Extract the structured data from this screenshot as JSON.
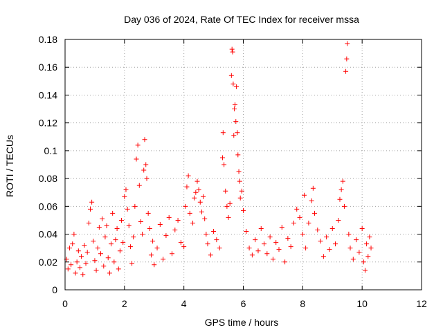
{
  "chart_data": {
    "type": "scatter",
    "title": "Day 036 of 2024, Rate Of TEC Index for receiver mssa",
    "xlabel": "GPS time / hours",
    "ylabel": "ROTI / TECUs",
    "xlim": [
      0,
      12
    ],
    "ylim": [
      0,
      0.18
    ],
    "xticks": [
      0,
      2,
      4,
      6,
      8,
      10,
      12
    ],
    "yticks": [
      0,
      0.02,
      0.04,
      0.06,
      0.08,
      0.1,
      0.12,
      0.14,
      0.16,
      0.18
    ],
    "xtick_labels": [
      "0",
      "2",
      "4",
      "6",
      "8",
      "10",
      "12"
    ],
    "ytick_labels": [
      "0",
      "0.02",
      "0.04",
      "0.06",
      "0.08",
      "0.1",
      "0.12",
      "0.14",
      "0.16",
      "0.18"
    ],
    "grid": true,
    "marker": "+",
    "marker_color": "#ff0000",
    "series": [
      {
        "name": "ROTI",
        "points": [
          [
            0.05,
            0.022
          ],
          [
            0.1,
            0.015
          ],
          [
            0.15,
            0.03
          ],
          [
            0.2,
            0.018
          ],
          [
            0.25,
            0.033
          ],
          [
            0.3,
            0.04
          ],
          [
            0.35,
            0.012
          ],
          [
            0.4,
            0.02
          ],
          [
            0.45,
            0.028
          ],
          [
            0.5,
            0.016
          ],
          [
            0.55,
            0.024
          ],
          [
            0.6,
            0.011
          ],
          [
            0.65,
            0.032
          ],
          [
            0.7,
            0.019
          ],
          [
            0.75,
            0.027
          ],
          [
            0.8,
            0.048
          ],
          [
            0.85,
            0.058
          ],
          [
            0.9,
            0.063
          ],
          [
            0.95,
            0.035
          ],
          [
            1.0,
            0.021
          ],
          [
            1.05,
            0.014
          ],
          [
            1.1,
            0.03
          ],
          [
            1.15,
            0.045
          ],
          [
            1.2,
            0.026
          ],
          [
            1.25,
            0.051
          ],
          [
            1.3,
            0.017
          ],
          [
            1.35,
            0.038
          ],
          [
            1.4,
            0.046
          ],
          [
            1.45,
            0.023
          ],
          [
            1.5,
            0.012
          ],
          [
            1.55,
            0.033
          ],
          [
            1.6,
            0.055
          ],
          [
            1.65,
            0.02
          ],
          [
            1.7,
            0.036
          ],
          [
            1.75,
            0.044
          ],
          [
            1.8,
            0.015
          ],
          [
            1.85,
            0.028
          ],
          [
            1.9,
            0.05
          ],
          [
            1.95,
            0.034
          ],
          [
            2.0,
            0.067
          ],
          [
            2.05,
            0.072
          ],
          [
            2.1,
            0.058
          ],
          [
            2.15,
            0.046
          ],
          [
            2.2,
            0.031
          ],
          [
            2.25,
            0.019
          ],
          [
            2.3,
            0.038
          ],
          [
            2.35,
            0.06
          ],
          [
            2.4,
            0.094
          ],
          [
            2.45,
            0.104
          ],
          [
            2.5,
            0.075
          ],
          [
            2.55,
            0.049
          ],
          [
            2.6,
            0.04
          ],
          [
            2.65,
            0.086
          ],
          [
            2.68,
            0.108
          ],
          [
            2.72,
            0.09
          ],
          [
            2.75,
            0.08
          ],
          [
            2.8,
            0.055
          ],
          [
            2.85,
            0.044
          ],
          [
            2.9,
            0.025
          ],
          [
            2.95,
            0.035
          ],
          [
            3.0,
            0.018
          ],
          [
            3.1,
            0.03
          ],
          [
            3.2,
            0.047
          ],
          [
            3.3,
            0.022
          ],
          [
            3.4,
            0.039
          ],
          [
            3.5,
            0.052
          ],
          [
            3.6,
            0.026
          ],
          [
            3.7,
            0.043
          ],
          [
            3.8,
            0.05
          ],
          [
            3.9,
            0.034
          ],
          [
            4.0,
            0.031
          ],
          [
            4.05,
            0.06
          ],
          [
            4.1,
            0.074
          ],
          [
            4.15,
            0.082
          ],
          [
            4.2,
            0.055
          ],
          [
            4.3,
            0.048
          ],
          [
            4.35,
            0.066
          ],
          [
            4.4,
            0.07
          ],
          [
            4.45,
            0.078
          ],
          [
            4.5,
            0.072
          ],
          [
            4.55,
            0.063
          ],
          [
            4.6,
            0.056
          ],
          [
            4.65,
            0.067
          ],
          [
            4.7,
            0.051
          ],
          [
            4.75,
            0.04
          ],
          [
            4.8,
            0.033
          ],
          [
            4.9,
            0.025
          ],
          [
            5.0,
            0.042
          ],
          [
            5.1,
            0.036
          ],
          [
            5.2,
            0.03
          ],
          [
            5.3,
            0.095
          ],
          [
            5.32,
            0.113
          ],
          [
            5.35,
            0.09
          ],
          [
            5.4,
            0.071
          ],
          [
            5.45,
            0.06
          ],
          [
            5.5,
            0.052
          ],
          [
            5.55,
            0.062
          ],
          [
            5.6,
            0.154
          ],
          [
            5.62,
            0.173
          ],
          [
            5.64,
            0.171
          ],
          [
            5.66,
            0.148
          ],
          [
            5.68,
            0.111
          ],
          [
            5.7,
            0.13
          ],
          [
            5.72,
            0.133
          ],
          [
            5.75,
            0.121
          ],
          [
            5.77,
            0.146
          ],
          [
            5.8,
            0.113
          ],
          [
            5.82,
            0.097
          ],
          [
            5.85,
            0.085
          ],
          [
            5.88,
            0.078
          ],
          [
            5.9,
            0.066
          ],
          [
            5.95,
            0.071
          ],
          [
            6.0,
            0.057
          ],
          [
            6.1,
            0.042
          ],
          [
            6.2,
            0.03
          ],
          [
            6.3,
            0.025
          ],
          [
            6.4,
            0.036
          ],
          [
            6.5,
            0.028
          ],
          [
            6.6,
            0.044
          ],
          [
            6.7,
            0.033
          ],
          [
            6.8,
            0.026
          ],
          [
            6.9,
            0.038
          ],
          [
            7.0,
            0.022
          ],
          [
            7.1,
            0.034
          ],
          [
            7.2,
            0.029
          ],
          [
            7.3,
            0.045
          ],
          [
            7.4,
            0.02
          ],
          [
            7.5,
            0.037
          ],
          [
            7.6,
            0.031
          ],
          [
            7.7,
            0.048
          ],
          [
            7.8,
            0.058
          ],
          [
            7.9,
            0.052
          ],
          [
            8.0,
            0.04
          ],
          [
            8.05,
            0.068
          ],
          [
            8.1,
            0.03
          ],
          [
            8.2,
            0.048
          ],
          [
            8.3,
            0.064
          ],
          [
            8.35,
            0.073
          ],
          [
            8.4,
            0.055
          ],
          [
            8.5,
            0.043
          ],
          [
            8.6,
            0.035
          ],
          [
            8.7,
            0.024
          ],
          [
            8.8,
            0.038
          ],
          [
            8.9,
            0.029
          ],
          [
            9.0,
            0.044
          ],
          [
            9.1,
            0.033
          ],
          [
            9.2,
            0.05
          ],
          [
            9.25,
            0.065
          ],
          [
            9.3,
            0.072
          ],
          [
            9.35,
            0.078
          ],
          [
            9.4,
            0.06
          ],
          [
            9.45,
            0.157
          ],
          [
            9.48,
            0.166
          ],
          [
            9.5,
            0.177
          ],
          [
            9.55,
            0.04
          ],
          [
            9.6,
            0.03
          ],
          [
            9.7,
            0.022
          ],
          [
            9.8,
            0.036
          ],
          [
            9.9,
            0.027
          ],
          [
            10.0,
            0.044
          ],
          [
            10.05,
            0.02
          ],
          [
            10.1,
            0.014
          ],
          [
            10.15,
            0.033
          ],
          [
            10.2,
            0.024
          ],
          [
            10.25,
            0.038
          ],
          [
            10.3,
            0.03
          ]
        ]
      }
    ]
  }
}
